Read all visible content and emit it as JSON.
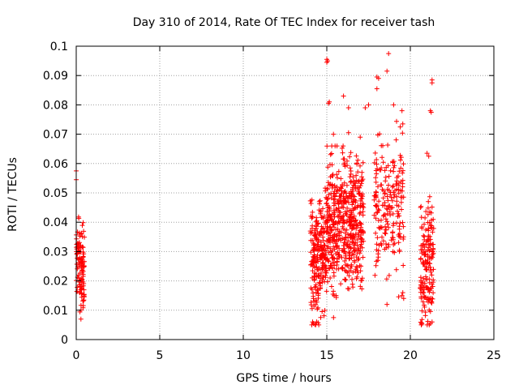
{
  "chart_data": {
    "type": "scatter",
    "title": "Day 310 of 2014, Rate Of TEC Index for receiver tash",
    "xlabel": "GPS time / hours",
    "ylabel": "ROTI / TECUs",
    "xlim": [
      0,
      25
    ],
    "ylim": [
      0,
      0.1
    ],
    "grid": true,
    "marker": "+",
    "marker_color": "#ff0000",
    "x_ticks": [
      0,
      5,
      10,
      15,
      20,
      25
    ],
    "x_tick_labels": [
      "0",
      "5",
      "10",
      "15",
      "20",
      "25"
    ],
    "y_ticks": [
      0,
      0.01,
      0.02,
      0.03,
      0.04,
      0.05,
      0.06,
      0.07,
      0.08,
      0.09,
      0.1
    ],
    "y_tick_labels": [
      "0",
      "0.01",
      "0.02",
      "0.03",
      "0.04",
      "0.05",
      "0.06",
      "0.07",
      "0.08",
      "0.09",
      "0.1"
    ],
    "clusters": [
      {
        "x_range": [
          0.0,
          0.5
        ],
        "y_range": [
          0.005,
          0.049
        ],
        "center": 0.025,
        "count": 120
      },
      {
        "x_range": [
          14.0,
          15.0
        ],
        "y_range": [
          0.005,
          0.06
        ],
        "center": 0.028,
        "count": 230
      },
      {
        "x_range": [
          15.0,
          17.2
        ],
        "y_range": [
          0.005,
          0.066
        ],
        "center": 0.04,
        "count": 520
      },
      {
        "x_range": [
          17.8,
          19.6
        ],
        "y_range": [
          0.012,
          0.075
        ],
        "center": 0.045,
        "count": 200
      },
      {
        "x_range": [
          20.6,
          21.4
        ],
        "y_range": [
          0.005,
          0.054
        ],
        "center": 0.025,
        "count": 170
      }
    ],
    "points": [
      [
        0.0,
        0.0545
      ],
      [
        0.0,
        0.0575
      ],
      [
        15.0,
        0.0955
      ],
      [
        15.05,
        0.095
      ],
      [
        15.0,
        0.0945
      ],
      [
        15.1,
        0.0805
      ],
      [
        15.15,
        0.081
      ],
      [
        16.0,
        0.083
      ],
      [
        16.3,
        0.079
      ],
      [
        17.3,
        0.079
      ],
      [
        17.5,
        0.08
      ],
      [
        19.0,
        0.08
      ],
      [
        18.0,
        0.0895
      ],
      [
        18.1,
        0.089
      ],
      [
        18.0,
        0.0855
      ],
      [
        18.7,
        0.0975
      ],
      [
        18.6,
        0.0915
      ],
      [
        19.5,
        0.078
      ],
      [
        19.55,
        0.0735
      ],
      [
        19.4,
        0.0725
      ],
      [
        21.3,
        0.0885
      ],
      [
        21.3,
        0.0875
      ],
      [
        21.2,
        0.078
      ],
      [
        21.25,
        0.0775
      ],
      [
        21.0,
        0.0635
      ],
      [
        21.1,
        0.0625
      ],
      [
        15.4,
        0.07
      ],
      [
        16.3,
        0.0705
      ],
      [
        17.0,
        0.069
      ],
      [
        14.1,
        0.005
      ],
      [
        14.2,
        0.0055
      ],
      [
        14.15,
        0.006
      ],
      [
        21.2,
        0.0055
      ],
      [
        21.3,
        0.006
      ],
      [
        19.6,
        0.014
      ],
      [
        19.5,
        0.015
      ],
      [
        19.55,
        0.016
      ],
      [
        18.6,
        0.012
      ]
    ]
  }
}
